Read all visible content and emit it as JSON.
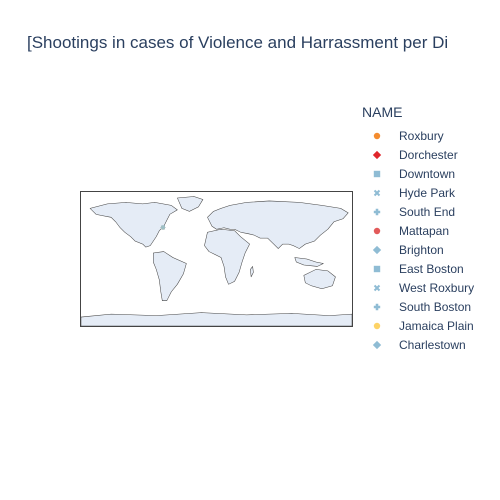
{
  "chart_data": {
    "type": "scattergeo",
    "title": "[Shootings in cases of Violence and Harrassment per Di",
    "projection": "equirectangular",
    "scope": "world",
    "land_color": "#e5ecf6",
    "coastline_color": "#444444",
    "legend": {
      "title": "NAME",
      "placement": "right"
    },
    "series": [
      {
        "name": "Roxbury",
        "symbol": "circle",
        "color": "#f48c2f",
        "lon": -71.08,
        "lat": 42.32
      },
      {
        "name": "Dorchester",
        "symbol": "diamond",
        "color": "#e0262b",
        "lon": -71.06,
        "lat": 42.3
      },
      {
        "name": "Downtown",
        "symbol": "square",
        "color": "#8fbcd4",
        "lon": -71.06,
        "lat": 42.36
      },
      {
        "name": "Hyde Park",
        "symbol": "x",
        "color": "#8fbcd4",
        "lon": -71.12,
        "lat": 42.26
      },
      {
        "name": "South End",
        "symbol": "cross",
        "color": "#8fbcd4",
        "lon": -71.07,
        "lat": 42.34
      },
      {
        "name": "Mattapan",
        "symbol": "circle",
        "color": "#e25a5a",
        "lon": -71.09,
        "lat": 42.27
      },
      {
        "name": "Brighton",
        "symbol": "diamond",
        "color": "#8fbcd4",
        "lon": -71.15,
        "lat": 42.35
      },
      {
        "name": "East Boston",
        "symbol": "square",
        "color": "#8fbcd4",
        "lon": -71.03,
        "lat": 42.37
      },
      {
        "name": "West Roxbury",
        "symbol": "x",
        "color": "#8fbcd4",
        "lon": -71.16,
        "lat": 42.28
      },
      {
        "name": "South Boston",
        "symbol": "cross",
        "color": "#8fbcd4",
        "lon": -71.05,
        "lat": 42.33
      },
      {
        "name": "Jamaica Plain",
        "symbol": "circle",
        "color": "#fdd366",
        "lon": -71.11,
        "lat": 42.31
      },
      {
        "name": "Charlestown",
        "symbol": "diamond",
        "color": "#8fbcd4",
        "lon": -71.06,
        "lat": 42.38
      }
    ]
  }
}
